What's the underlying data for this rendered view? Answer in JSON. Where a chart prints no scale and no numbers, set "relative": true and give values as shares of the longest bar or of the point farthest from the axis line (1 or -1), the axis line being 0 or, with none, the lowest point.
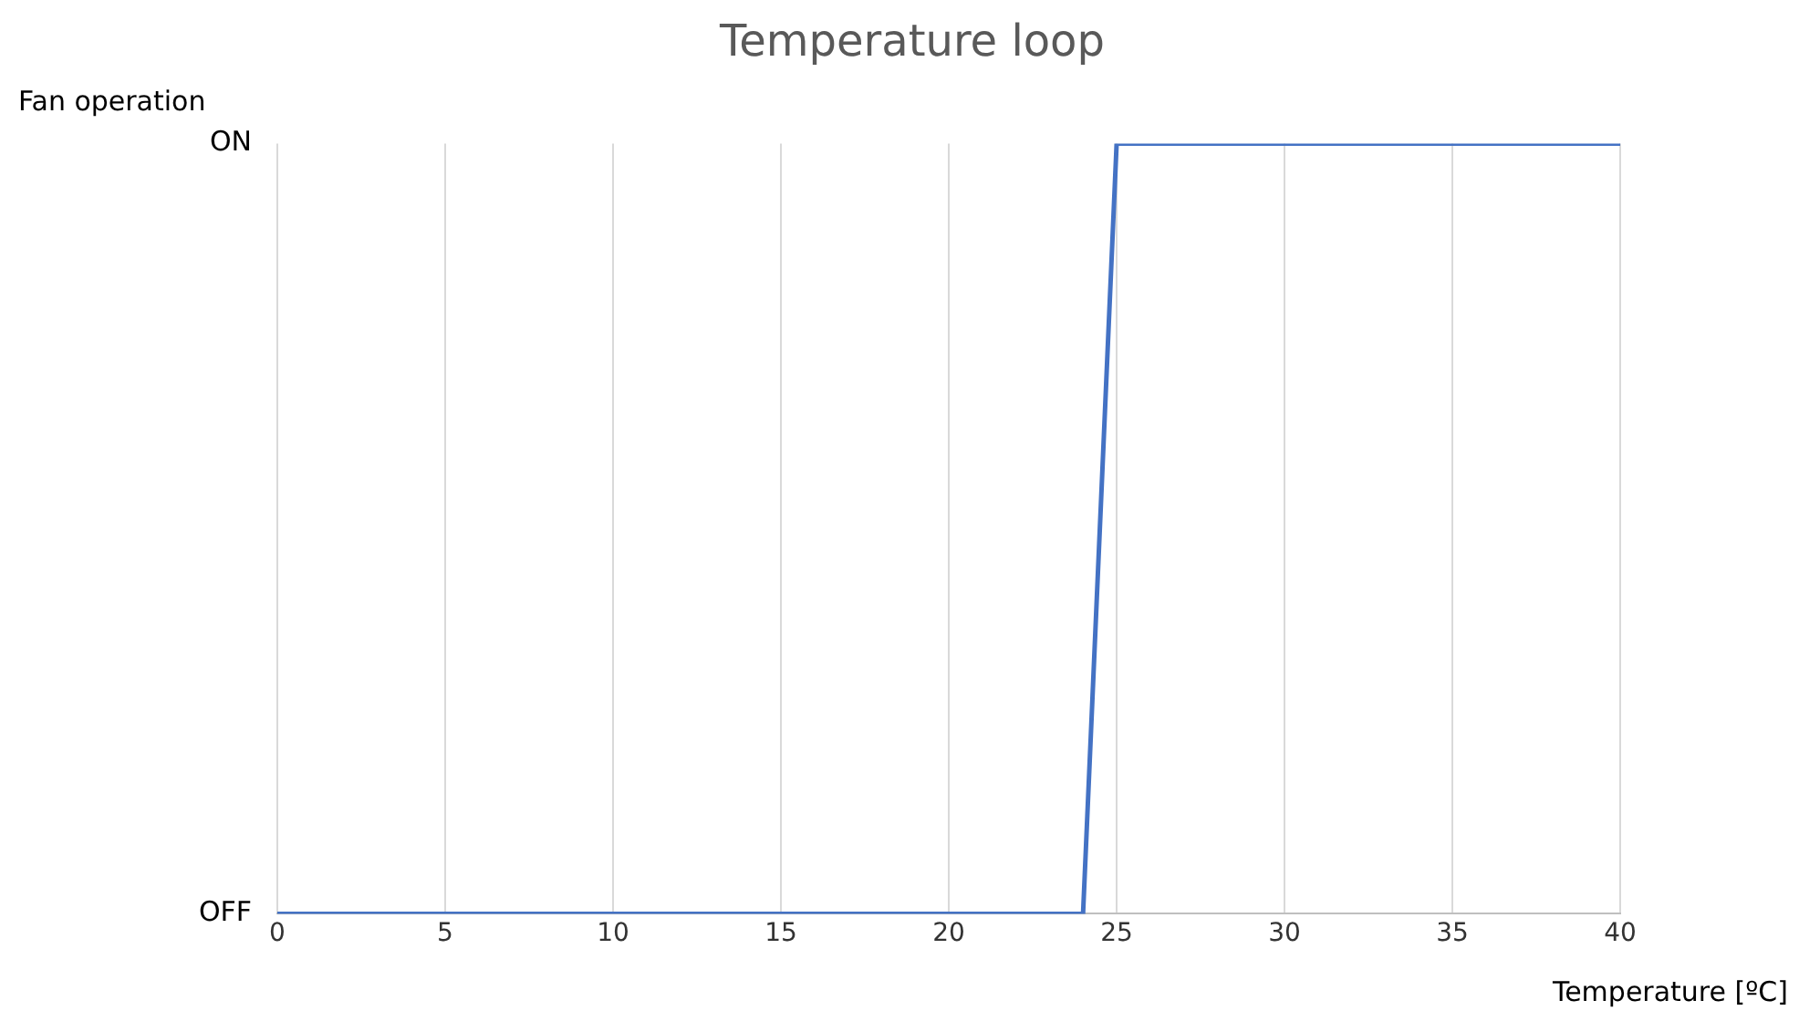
{
  "chart_data": {
    "type": "line",
    "title": "Temperature loop",
    "xlabel": "Temperature [ºC]",
    "ylabel": "Fan operation",
    "x": [
      0,
      24,
      25,
      40
    ],
    "series": [
      {
        "color": "#4472c4",
        "values": [
          0,
          0,
          1,
          1
        ]
      }
    ],
    "xlim": [
      0,
      40
    ],
    "xticks": [
      0,
      5,
      10,
      15,
      20,
      25,
      30,
      35,
      40
    ],
    "relative": true,
    "annotations": [
      "OFF",
      "ON"
    ],
    "grid": "x",
    "legend": false,
    "marker": "none",
    "line_style": "solid"
  }
}
